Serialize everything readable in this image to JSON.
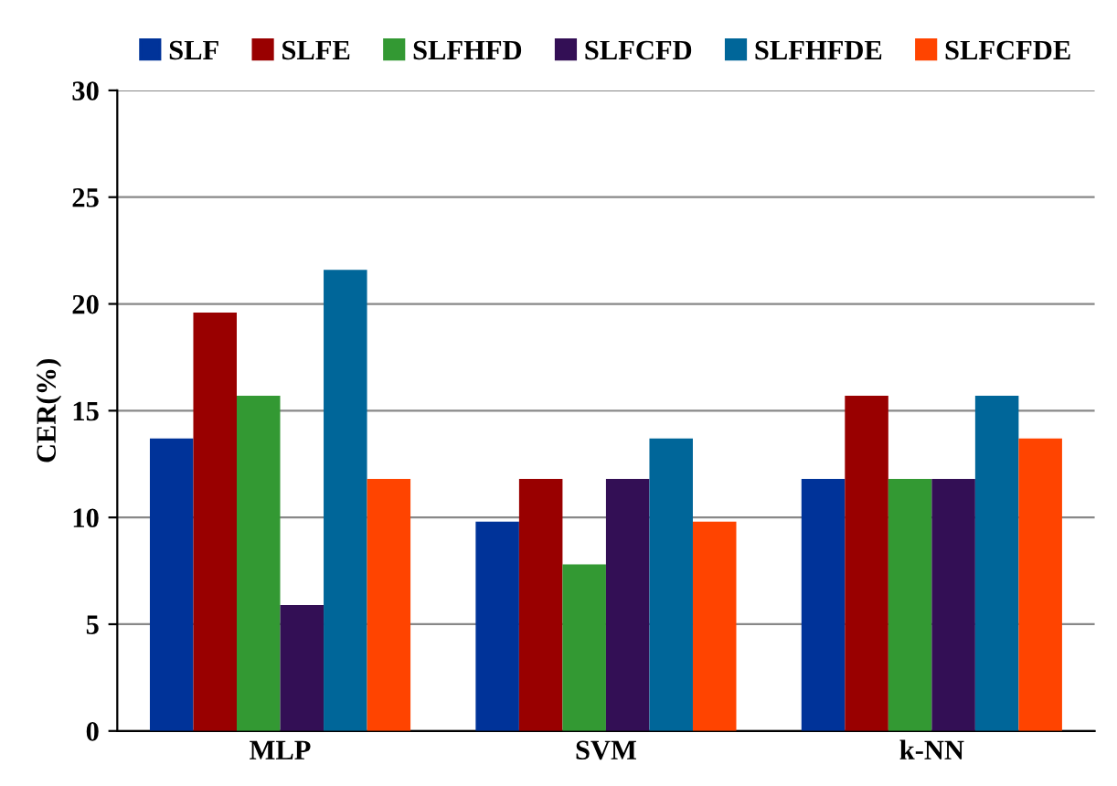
{
  "chart_data": {
    "type": "bar",
    "ylabel": "CER(%)",
    "categories": [
      "MLP",
      "SVM",
      "k-NN"
    ],
    "series": [
      {
        "name": "SLF",
        "color": "#003399",
        "values": [
          13.7,
          9.8,
          11.8
        ]
      },
      {
        "name": "SLFE",
        "color": "#990000",
        "values": [
          19.6,
          11.8,
          15.7
        ]
      },
      {
        "name": "SLFHFD",
        "color": "#339933",
        "values": [
          15.7,
          7.8,
          11.8
        ]
      },
      {
        "name": "SLFCFD",
        "color": "#330f55",
        "values": [
          5.9,
          11.8,
          11.8
        ]
      },
      {
        "name": "SLFHFDE",
        "color": "#006699",
        "values": [
          21.6,
          13.7,
          15.7
        ]
      },
      {
        "name": "SLFCFDE",
        "color": "#ff4400",
        "values": [
          11.8,
          9.8,
          13.7
        ]
      }
    ],
    "ylim": [
      0,
      30
    ],
    "yticks": [
      0,
      5,
      10,
      15,
      20,
      25,
      30
    ],
    "grid": "y",
    "legend": "top"
  }
}
